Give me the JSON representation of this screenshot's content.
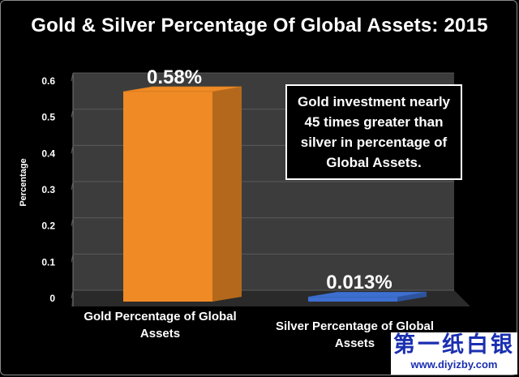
{
  "chart_data": {
    "type": "bar",
    "title": "Gold & Silver Percentage Of Global Assets: 2015",
    "ylabel": "Percentage",
    "xlabel": "",
    "categories": [
      "Gold Percentage of Global Assets",
      "Silver Percentage of Global Assets"
    ],
    "values": [
      0.58,
      0.013
    ],
    "data_labels": [
      "0.58%",
      "0.013%"
    ],
    "ylim": [
      0,
      0.6
    ],
    "yticks": [
      "0",
      "0.1",
      "0.2",
      "0.3",
      "0.4",
      "0.5",
      "0.6"
    ],
    "grid": true,
    "bar_colors": [
      "#f08a24",
      "#3d6fd0"
    ],
    "annotation": "Gold investment nearly 45 times greater than silver in percentage of Global Assets."
  },
  "watermark": {
    "chars": "第一纸白银",
    "url": "www.diyizby.com"
  }
}
